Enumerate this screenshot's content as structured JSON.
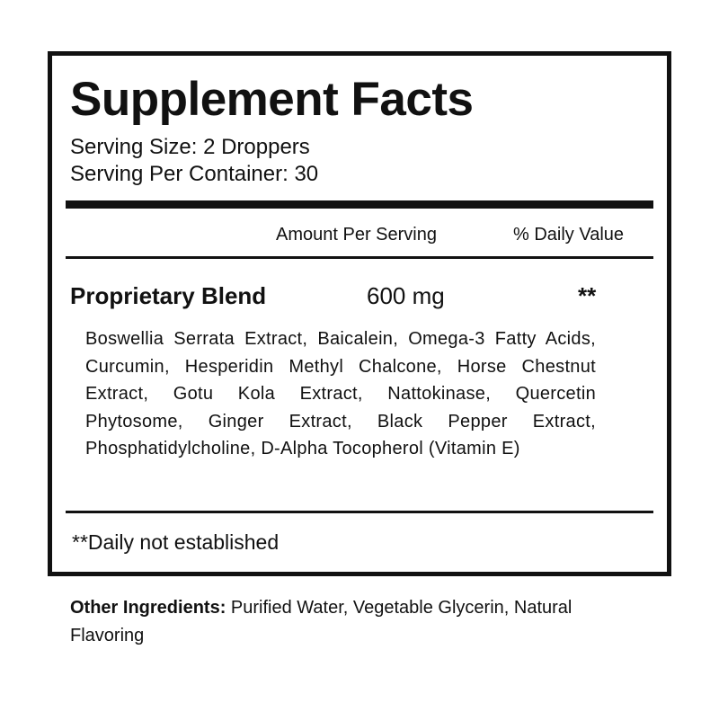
{
  "title": "Supplement Facts",
  "serving_size": "Serving Size: 2 Droppers",
  "servings_per_container": "Serving Per Container: 30",
  "header": {
    "amount": "Amount Per Serving",
    "daily_value": "% Daily Value"
  },
  "blend": {
    "name": "Proprietary Blend",
    "amount": "600 mg",
    "daily_value": "**"
  },
  "ingredients": "Boswellia Serrata Extract, Baicalein, Omega-3 Fatty Acids, Curcumin, Hesperidin Methyl Chalcone, Horse Chestnut Extract, Gotu Kola Extract, Nattokinase, Quercetin Phytosome, Ginger Extract, Black Pepper Extract, Phosphatidylcholine, D-Alpha Tocopherol (Vitamin E)",
  "footnote": "**Daily not established",
  "other": {
    "label": "Other Ingredients:",
    "text": " Purified Water, Vegetable Glycerin, Natural Flavoring"
  }
}
